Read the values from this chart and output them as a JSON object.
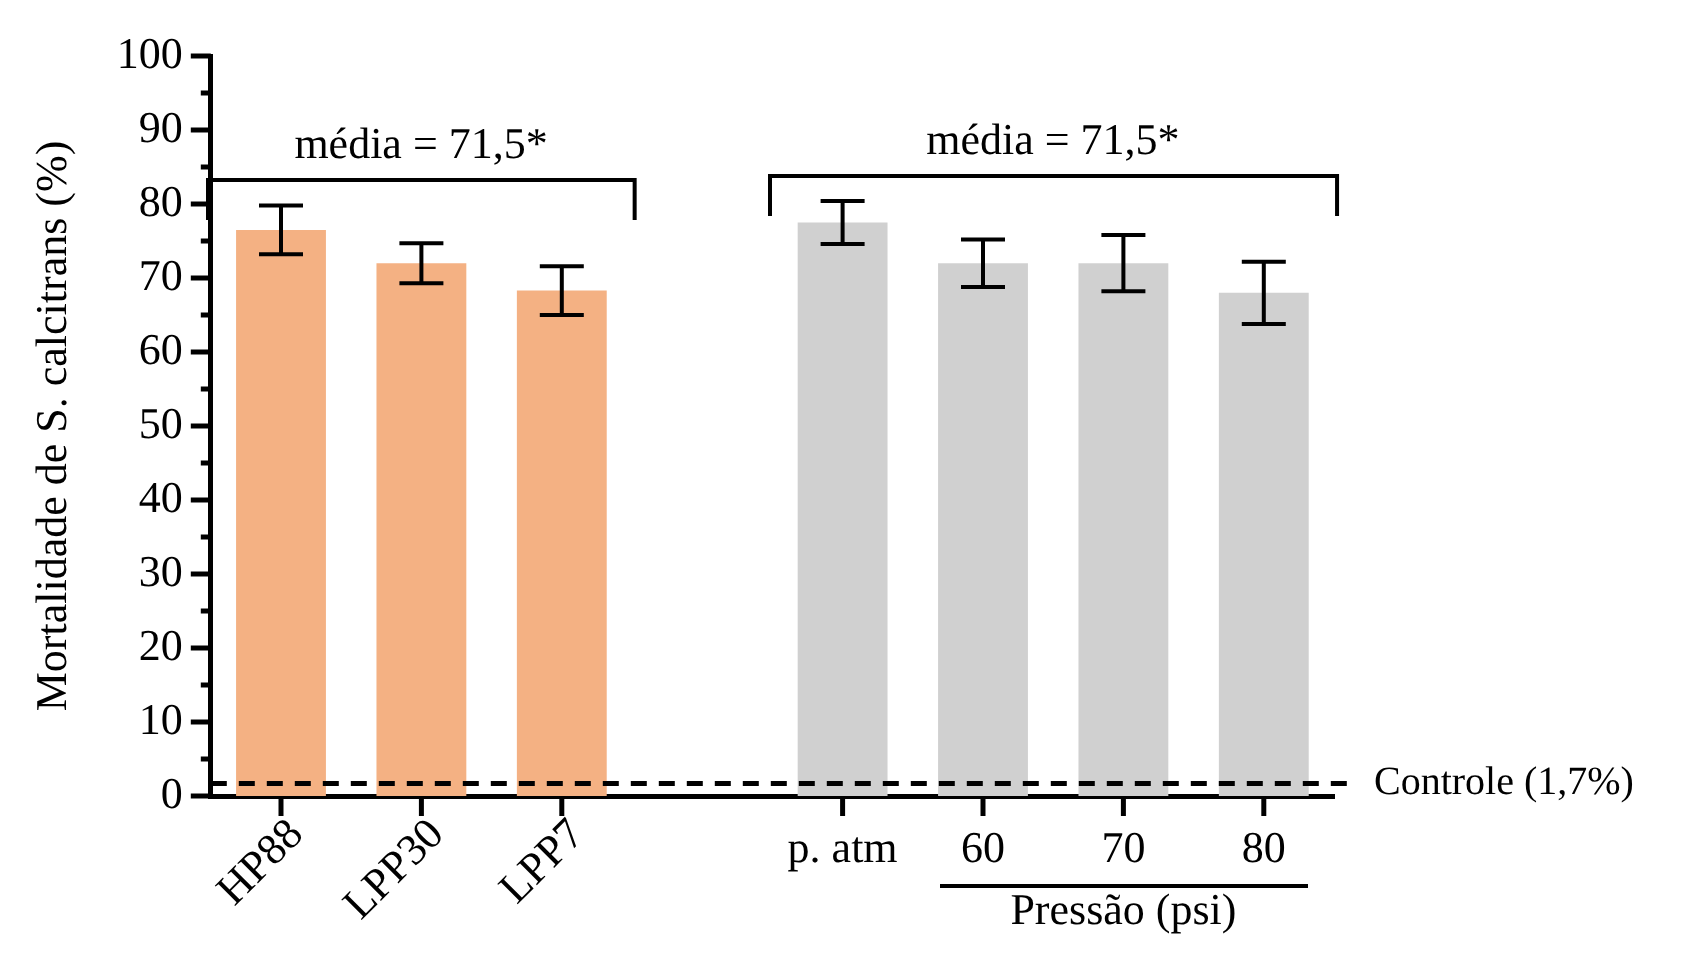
{
  "chart_data": {
    "type": "bar",
    "ylabel": "Mortalidade de S. calcitrans (%)",
    "xlabel": "Pressão (psi)",
    "categories": [
      "HP88",
      "LPP30",
      "LPP7",
      null,
      "p. atm",
      "60",
      "70",
      "80"
    ],
    "values": [
      76.5,
      72,
      68.3,
      null,
      77.5,
      72,
      72,
      68
    ],
    "errors": [
      3.3,
      2.7,
      3.3,
      null,
      2.9,
      3.2,
      3.8,
      4.2
    ],
    "colors": [
      "#f4b183",
      "#f4b183",
      "#f4b183",
      "#ffffff",
      "#d0d0d0",
      "#d0d0d0",
      "#d0d0d0",
      "#d0d0d0"
    ],
    "ylim": [
      0,
      100
    ],
    "yticks": [
      0,
      {
        "value": 5,
        "label": null
      },
      10,
      {
        "value": 15,
        "label": null
      },
      20,
      {
        "value": 25,
        "label": null
      },
      30,
      {
        "value": 35,
        "label": null
      },
      40,
      {
        "value": 45,
        "label": null
      },
      50,
      {
        "value": 55,
        "label": null
      },
      60,
      {
        "value": 65,
        "label": null
      },
      70,
      {
        "value": 75,
        "label": null
      },
      80,
      {
        "value": 85,
        "label": null
      },
      90,
      {
        "value": 95,
        "label": null
      },
      100
    ],
    "annotations": [
      "média = 71,5*",
      "média = 71,5*"
    ],
    "ref_lines": [
      {
        "axis": "y",
        "value": 1.7,
        "label": "Controle (1,7%)",
        "line_style": "dashed",
        "color": "#000000"
      }
    ],
    "grid": false,
    "legend": false
  }
}
